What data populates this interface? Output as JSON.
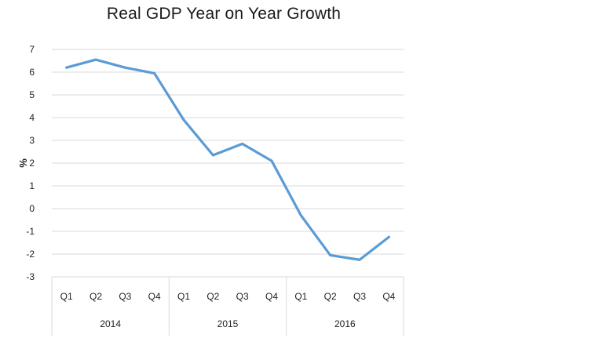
{
  "chart_data": {
    "type": "line",
    "title": "Real GDP Year on Year Growth",
    "ylabel": "%",
    "xlabel": "",
    "ylim": [
      -3,
      7
    ],
    "yticks": [
      7,
      6,
      5,
      4,
      3,
      2,
      1,
      0,
      -1,
      -2,
      -3
    ],
    "ytick_labels": [
      "7",
      "6",
      "5",
      "4",
      "3",
      "2",
      "1",
      "0",
      "-1",
      "-2",
      "-3"
    ],
    "grid": true,
    "legend": "none",
    "categories": [
      "Q1",
      "Q2",
      "Q3",
      "Q4",
      "Q1",
      "Q2",
      "Q3",
      "Q4",
      "Q1",
      "Q2",
      "Q3",
      "Q4"
    ],
    "groups": [
      {
        "label": "2014",
        "start": 0,
        "end": 3
      },
      {
        "label": "2015",
        "start": 4,
        "end": 7
      },
      {
        "label": "2016",
        "start": 8,
        "end": 11
      }
    ],
    "series": [
      {
        "values": [
          6.2,
          6.55,
          6.2,
          5.95,
          3.9,
          2.35,
          2.85,
          2.1,
          -0.3,
          -2.05,
          -2.25,
          -1.25
        ],
        "color": "#5b9bd5"
      }
    ]
  }
}
